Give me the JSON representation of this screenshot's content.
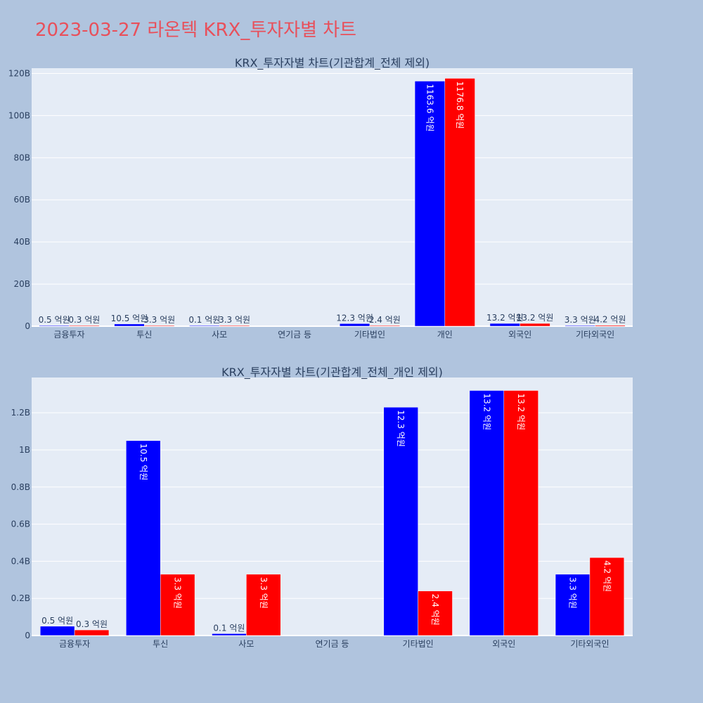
{
  "page_title": "2023-03-27 라온텍 KRX_투자자별 차트",
  "colors": {
    "buy": "#0000ff",
    "sell": "#ff0000",
    "plot_bg": "#e5ecf6",
    "page_bg": "#b0c4de",
    "title": "#e8505b"
  },
  "chart_data": [
    {
      "type": "bar",
      "title": "KRX_투자자별 차트(기관합계_전체 제외)",
      "categories": [
        "금융투자",
        "투신",
        "사모",
        "연기금 등",
        "기타법인",
        "개인",
        "외국인",
        "기타외국인"
      ],
      "series": [
        {
          "color": "#0000ff",
          "values": [
            0.05,
            1.05,
            0.01,
            0,
            1.23,
            116.36,
            1.32,
            0.33
          ],
          "labels": [
            "0.5 억원",
            "10.5 억원",
            "0.1 억원",
            "",
            "12.3 억원",
            "1163.6 억원",
            "13.2 억원",
            "3.3 억원"
          ]
        },
        {
          "color": "#ff0000",
          "values": [
            0.03,
            0.33,
            0.33,
            0,
            0.24,
            117.68,
            1.32,
            0.42
          ],
          "labels": [
            "0.3 억원",
            "3.3 억원",
            "3.3 억원",
            "",
            "2.4 억원",
            "1176.8 억원",
            "13.2 억원",
            "4.2 억원"
          ]
        }
      ],
      "y_ticks": [
        0,
        20,
        40,
        60,
        80,
        100,
        120
      ],
      "y_tick_labels": [
        "0",
        "20B",
        "40B",
        "60B",
        "80B",
        "100B",
        "120B"
      ],
      "ylim": [
        0,
        122.5
      ],
      "grid": true
    },
    {
      "type": "bar",
      "title": "KRX_투자자별 차트(기관합계_전체_개인 제외)",
      "categories": [
        "금융투자",
        "투신",
        "사모",
        "연기금 등",
        "기타법인",
        "외국인",
        "기타외국인"
      ],
      "series": [
        {
          "color": "#0000ff",
          "values": [
            0.05,
            1.05,
            0.01,
            0,
            1.23,
            1.32,
            0.33
          ],
          "labels": [
            "0.5 억원",
            "10.5 억원",
            "0.1 억원",
            "",
            "12.3 억원",
            "13.2 억원",
            "3.3 억원"
          ]
        },
        {
          "color": "#ff0000",
          "values": [
            0.03,
            0.33,
            0.33,
            0,
            0.24,
            1.32,
            0.42
          ],
          "labels": [
            "0.3 억원",
            "3.3 억원",
            "3.3 억원",
            "",
            "2.4 억원",
            "13.2 억원",
            "4.2 억원"
          ]
        }
      ],
      "y_ticks": [
        0,
        0.2,
        0.4,
        0.6,
        0.8,
        1,
        1.2
      ],
      "y_tick_labels": [
        "0",
        "0.2B",
        "0.4B",
        "0.6B",
        "0.8B",
        "1B",
        "1.2B"
      ],
      "ylim": [
        0,
        1.39
      ],
      "grid": true
    }
  ]
}
